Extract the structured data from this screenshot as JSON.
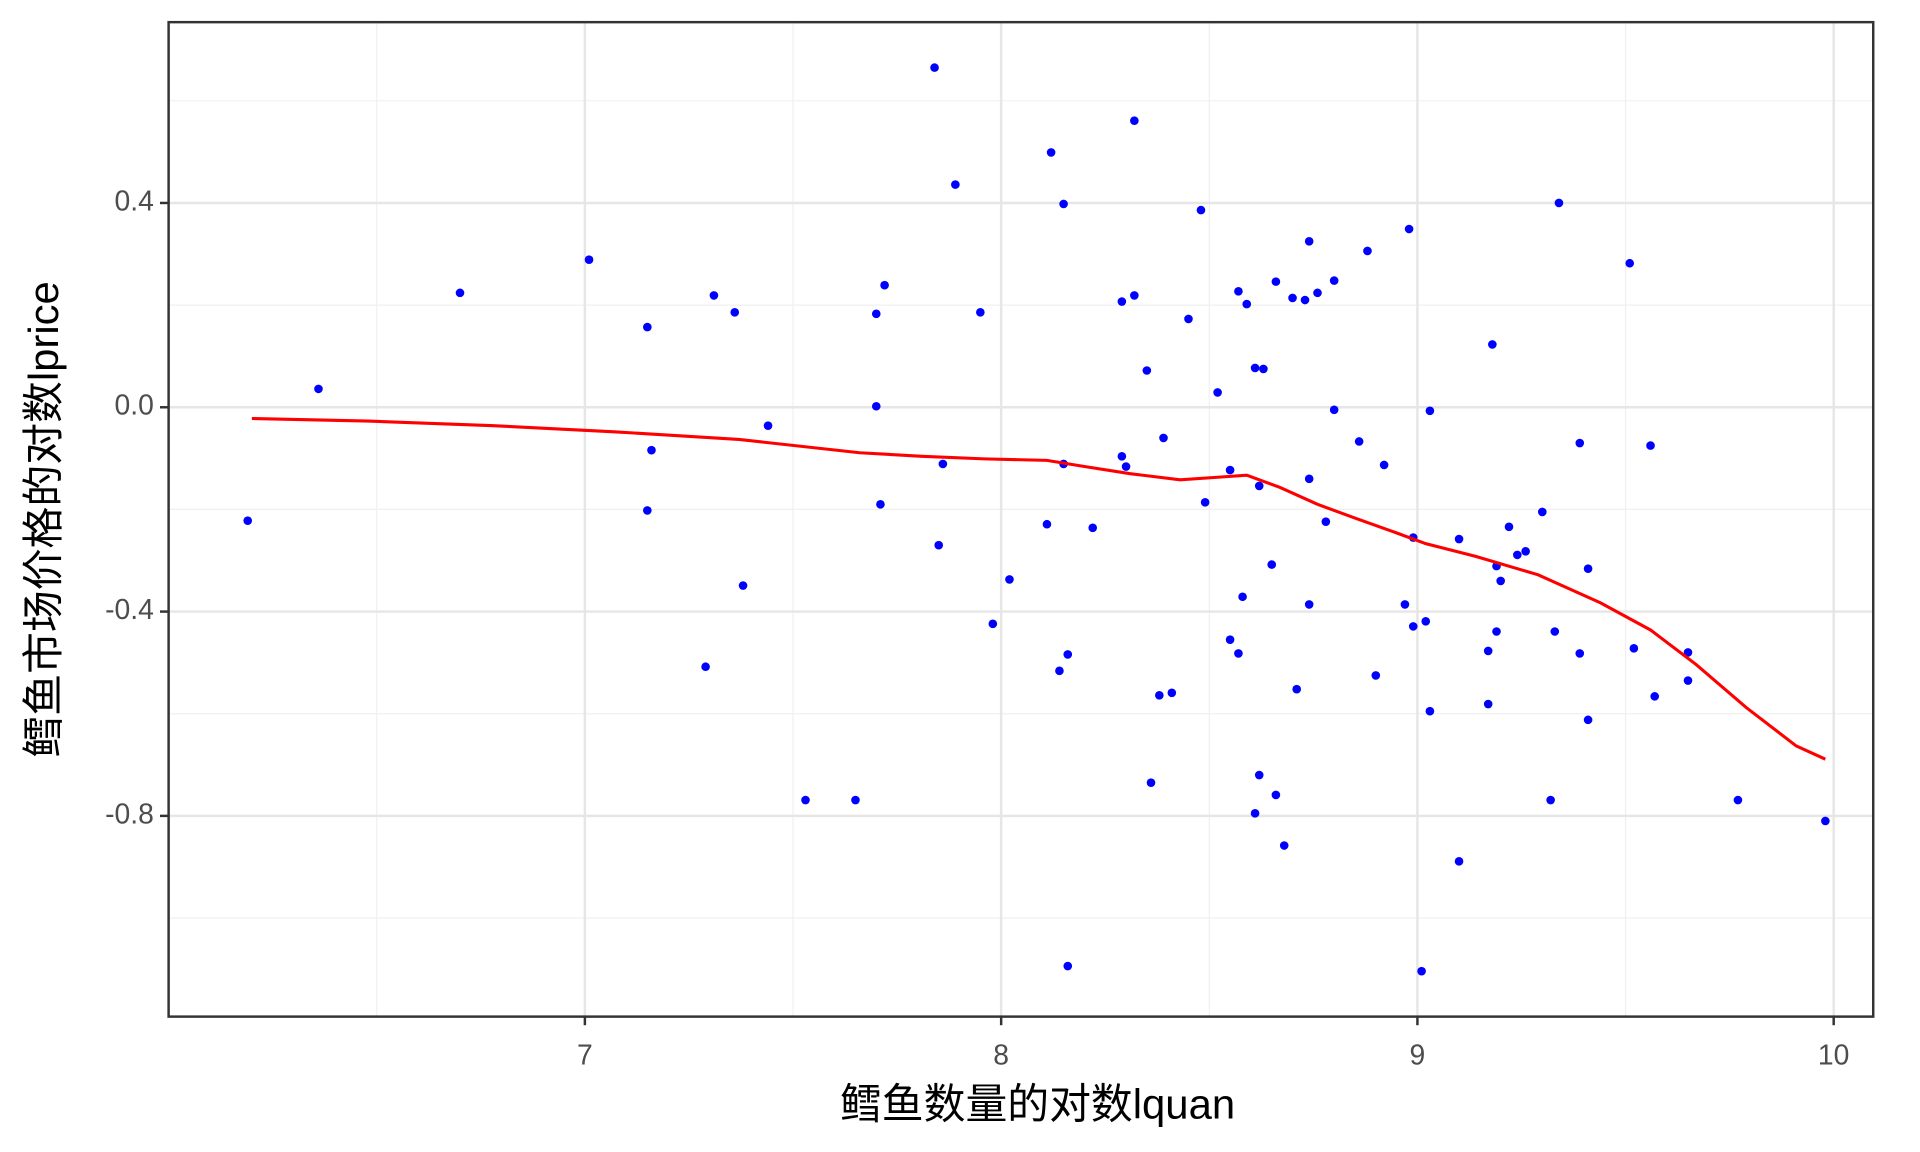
{
  "chart_data": {
    "type": "scatter",
    "xlabel": "鳕鱼数量的对数lquan",
    "ylabel": "鳕鱼市场价格的对数lprice",
    "xlim": [
      6.0,
      10.095
    ],
    "ylim": [
      -1.193,
      0.754
    ],
    "xticks": [
      7,
      8,
      9,
      10
    ],
    "yticks": [
      {
        "value": 0.4,
        "label": "0.4"
      },
      {
        "value": 0,
        "label": "0.0"
      },
      {
        "value": -0.4,
        "label": "-0.4"
      },
      {
        "value": -0.8,
        "label": "-0.8"
      }
    ],
    "xminor": [
      6.5,
      7.5,
      8.5,
      9.5
    ],
    "yminor": [
      0.6,
      0.2,
      -0.2,
      -0.6,
      -1.0
    ],
    "grid": true,
    "series": [
      {
        "name": "points",
        "color": "#0000ff",
        "x": [
          6.19,
          6.36,
          6.7,
          7.01,
          7.15,
          7.16,
          7.15,
          7.31,
          7.36,
          7.29,
          7.38,
          7.44,
          7.53,
          7.65,
          7.7,
          7.72,
          7.7,
          7.71,
          7.84,
          7.89,
          7.86,
          7.85,
          7.95,
          7.98,
          8.02,
          8.12,
          8.15,
          8.11,
          8.15,
          8.14,
          8.16,
          8.16,
          8.22,
          8.32,
          8.29,
          8.32,
          8.35,
          8.29,
          8.3,
          8.39,
          8.45,
          8.48,
          8.52,
          8.49,
          8.38,
          8.41,
          8.36,
          8.57,
          8.59,
          8.61,
          8.63,
          8.55,
          8.62,
          8.58,
          8.55,
          8.57,
          8.65,
          8.66,
          8.7,
          8.73,
          8.74,
          8.76,
          8.8,
          8.8,
          8.74,
          8.78,
          8.74,
          8.71,
          8.62,
          8.61,
          8.66,
          8.68,
          8.88,
          8.86,
          8.92,
          8.98,
          8.99,
          8.97,
          8.99,
          9.02,
          9.03,
          8.9,
          9.03,
          9.01,
          9.1,
          9.1,
          9.18,
          9.19,
          9.2,
          9.22,
          9.24,
          9.26,
          9.3,
          9.34,
          9.19,
          9.17,
          9.17,
          9.33,
          9.32,
          9.39,
          9.41,
          9.39,
          9.41,
          9.51,
          9.56,
          9.52,
          9.57,
          9.65,
          9.65,
          9.77,
          9.98
        ],
        "values": [
          -0.222,
          0.036,
          0.224,
          0.289,
          0.157,
          -0.084,
          -0.202,
          0.219,
          0.186,
          -0.508,
          -0.349,
          -0.036,
          -0.769,
          -0.769,
          0.183,
          0.239,
          0.002,
          -0.19,
          0.665,
          0.436,
          -0.111,
          -0.27,
          0.186,
          -0.424,
          -0.337,
          0.499,
          0.398,
          -0.229,
          -0.111,
          -0.516,
          -0.484,
          -1.094,
          -0.236,
          0.561,
          0.207,
          0.219,
          0.072,
          -0.096,
          -0.116,
          -0.06,
          0.173,
          0.386,
          0.029,
          -0.186,
          -0.564,
          -0.559,
          -0.735,
          0.227,
          0.202,
          0.077,
          0.075,
          -0.123,
          -0.154,
          -0.371,
          -0.455,
          -0.482,
          -0.308,
          0.246,
          0.214,
          0.21,
          0.325,
          0.224,
          0.248,
          -0.005,
          -0.14,
          -0.224,
          -0.386,
          -0.552,
          -0.72,
          -0.795,
          -0.759,
          -0.858,
          0.306,
          -0.067,
          -0.113,
          0.349,
          -0.255,
          -0.386,
          -0.429,
          -0.419,
          -0.007,
          -0.525,
          -0.595,
          -1.104,
          -0.889,
          -0.258,
          0.123,
          -0.311,
          -0.34,
          -0.234,
          -0.289,
          -0.282,
          -0.205,
          0.4,
          -0.439,
          -0.477,
          -0.581,
          -0.439,
          -0.769,
          -0.07,
          -0.316,
          -0.482,
          -0.612,
          0.282,
          -0.075,
          -0.472,
          -0.566,
          -0.48,
          -0.535,
          -0.769,
          -0.81
        ]
      },
      {
        "name": "smooth",
        "type": "line",
        "color": "#ff0000",
        "x": [
          6.2,
          6.48,
          6.78,
          7.07,
          7.37,
          7.66,
          7.81,
          7.96,
          8.11,
          8.2,
          8.31,
          8.43,
          8.52,
          8.59,
          8.67,
          8.76,
          8.85,
          8.94,
          9.02,
          9.14,
          9.29,
          9.44,
          9.56,
          9.67,
          9.79,
          9.91,
          9.98
        ],
        "values": [
          -0.022,
          -0.027,
          -0.036,
          -0.048,
          -0.063,
          -0.089,
          -0.096,
          -0.101,
          -0.104,
          -0.116,
          -0.13,
          -0.142,
          -0.137,
          -0.133,
          -0.157,
          -0.19,
          -0.217,
          -0.243,
          -0.267,
          -0.292,
          -0.328,
          -0.383,
          -0.436,
          -0.504,
          -0.588,
          -0.663,
          -0.689
        ]
      }
    ]
  }
}
